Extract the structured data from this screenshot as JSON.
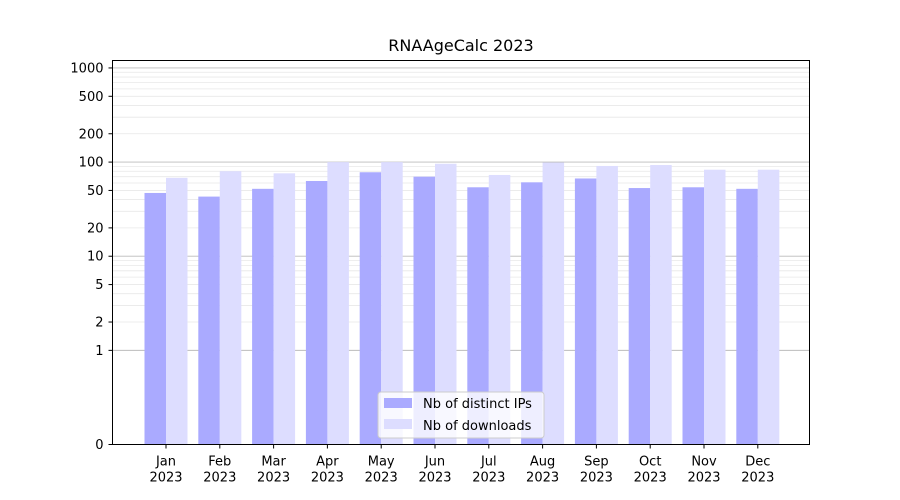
{
  "chart_data": {
    "type": "bar",
    "title": "RNAAgeCalc 2023",
    "xlabel": "",
    "ylabel": "",
    "y_scale": "symlog",
    "grid": true,
    "legend_position": "lower-center",
    "categories": [
      [
        "Jan",
        "2023"
      ],
      [
        "Feb",
        "2023"
      ],
      [
        "Mar",
        "2023"
      ],
      [
        "Apr",
        "2023"
      ],
      [
        "May",
        "2023"
      ],
      [
        "Jun",
        "2023"
      ],
      [
        "Jul",
        "2023"
      ],
      [
        "Aug",
        "2023"
      ],
      [
        "Sep",
        "2023"
      ],
      [
        "Oct",
        "2023"
      ],
      [
        "Nov",
        "2023"
      ],
      [
        "Dec",
        "2023"
      ]
    ],
    "y_ticks": [
      0,
      1,
      2,
      5,
      10,
      20,
      50,
      100,
      200,
      500,
      1000
    ],
    "ylim": [
      0,
      1200
    ],
    "series": [
      {
        "name": "Nb of distinct IPs",
        "color": "#aaaaff",
        "values": [
          47,
          43,
          52,
          63,
          78,
          70,
          54,
          61,
          67,
          53,
          54,
          52
        ]
      },
      {
        "name": "Nb of downloads",
        "color": "#ddddff",
        "values": [
          68,
          80,
          76,
          100,
          100,
          96,
          73,
          99,
          91,
          93,
          83,
          83
        ]
      }
    ]
  }
}
